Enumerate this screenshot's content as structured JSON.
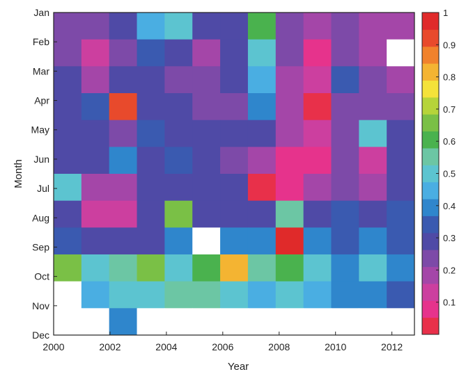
{
  "chart_data": {
    "type": "heatmap",
    "xlabel": "Year",
    "ylabel": "Month",
    "x_ticks": [
      "2000",
      "2002",
      "2004",
      "2006",
      "2008",
      "2010",
      "2012"
    ],
    "y_ticks": [
      "Jan",
      "Feb",
      "Mar",
      "Apr",
      "May",
      "Jun",
      "Jul",
      "Aug",
      "Sep",
      "Oct",
      "Nov",
      "Dec"
    ],
    "colorbar": {
      "ticks": [
        "0.1",
        "0.2",
        "0.3",
        "0.4",
        "0.5",
        "0.6",
        "0.7",
        "0.8",
        "0.9",
        "1"
      ],
      "range": [
        0,
        1
      ],
      "colors": [
        "#e8304a",
        "#e6338c",
        "#cc3f9f",
        "#a446a8",
        "#7d4aa8",
        "#4f4aa6",
        "#3a5ab0",
        "#2f86cc",
        "#4aaee2",
        "#5cc4d0",
        "#6cc6a4",
        "#4ab24e",
        "#7ac046",
        "#b6d43a",
        "#f4e23a",
        "#f4b432",
        "#f0822c",
        "#e84a2c",
        "#e02a2a"
      ]
    },
    "years": [
      2000,
      2001,
      2002,
      2003,
      2004,
      2005,
      2006,
      2007,
      2008,
      2009,
      2010,
      2011,
      2012
    ],
    "months": [
      "Jan",
      "Feb",
      "Mar",
      "Apr",
      "May",
      "Jun",
      "Jul",
      "Aug",
      "Sep",
      "Oct",
      "Nov",
      "Dec"
    ],
    "values": [
      [
        0.24,
        0.22,
        0.28,
        0.44,
        0.52,
        0.3,
        0.3,
        0.6,
        0.24,
        0.18,
        0.24,
        0.17,
        0.18
      ],
      [
        0.24,
        0.14,
        0.24,
        0.32,
        0.28,
        0.16,
        0.28,
        0.52,
        0.22,
        0.08,
        0.24,
        0.16,
        null
      ],
      [
        0.28,
        0.16,
        0.28,
        0.3,
        0.26,
        0.24,
        0.28,
        0.46,
        0.2,
        0.14,
        0.36,
        0.24,
        0.2
      ],
      [
        0.3,
        0.32,
        0.9,
        0.3,
        0.3,
        0.26,
        0.26,
        0.4,
        0.18,
        0.04,
        0.24,
        0.26,
        0.24
      ],
      [
        0.3,
        0.3,
        0.24,
        0.32,
        0.3,
        0.28,
        0.28,
        0.3,
        0.16,
        0.12,
        0.26,
        0.48,
        0.3
      ],
      [
        0.3,
        0.3,
        0.42,
        0.3,
        0.36,
        0.3,
        0.26,
        0.16,
        0.06,
        0.1,
        0.24,
        0.12,
        0.3
      ],
      [
        0.48,
        0.2,
        0.2,
        0.28,
        0.3,
        0.3,
        0.28,
        0.02,
        0.08,
        0.16,
        0.26,
        0.18,
        0.3
      ],
      [
        0.3,
        0.14,
        0.12,
        0.28,
        0.66,
        0.3,
        0.28,
        0.3,
        0.56,
        0.3,
        0.32,
        0.3,
        0.32
      ],
      [
        0.36,
        0.3,
        0.3,
        0.3,
        0.42,
        null,
        0.42,
        0.4,
        0.96,
        0.42,
        0.36,
        0.4,
        0.34
      ],
      [
        0.66,
        0.5,
        0.54,
        0.66,
        0.52,
        0.6,
        0.8,
        0.54,
        0.62,
        0.5,
        0.4,
        0.48,
        0.4
      ],
      [
        null,
        0.46,
        0.52,
        0.52,
        0.54,
        0.56,
        0.5,
        0.46,
        0.5,
        0.46,
        0.4,
        0.4,
        0.34
      ],
      [
        null,
        null,
        0.4,
        null,
        null,
        null,
        null,
        null,
        null,
        null,
        null,
        null,
        null
      ]
    ]
  }
}
